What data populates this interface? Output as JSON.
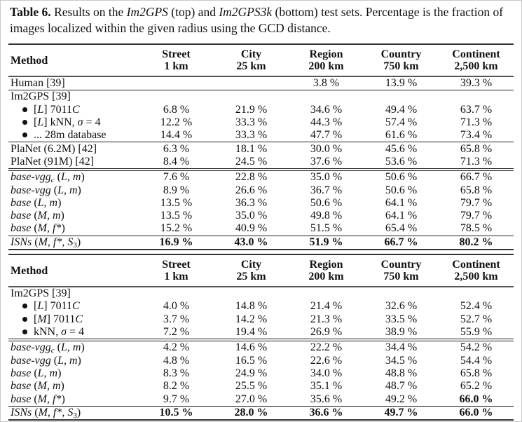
{
  "caption": [
    {
      "t": "Table 6.",
      "b": true
    },
    {
      "t": " Results on the "
    },
    {
      "t": "Im2GPS",
      "i": true
    },
    {
      "t": " (top) and "
    },
    {
      "t": "Im2GPS3k",
      "i": true
    },
    {
      "t": " (bottom) test sets. Percentage is the fraction of images localized within the given radius using the GCD distance."
    }
  ],
  "tables": [
    {
      "method_header": "Method",
      "columns": [
        {
          "name": "Street",
          "radius": "1 km"
        },
        {
          "name": "City",
          "radius": "25 km"
        },
        {
          "name": "Region",
          "radius": "200 km"
        },
        {
          "name": "Country",
          "radius": "750 km"
        },
        {
          "name": "Continent",
          "radius": "2,500 km"
        }
      ],
      "groups": [
        [
          {
            "method": [
              {
                "t": "Human [39]"
              }
            ],
            "values": [
              "",
              "",
              "3.8 %",
              "13.9 %",
              "39.3 %"
            ]
          }
        ],
        [
          {
            "method": [
              {
                "t": "Im2GPS [39]"
              }
            ],
            "values": [
              "",
              "",
              "",
              "",
              ""
            ]
          },
          {
            "bullet": true,
            "method": [
              {
                "t": "[",
                "i": false
              },
              {
                "t": "L",
                "i": true
              },
              {
                "t": "] 7011"
              },
              {
                "t": "C",
                "i": true
              }
            ],
            "values": [
              "6.8 %",
              "21.9 %",
              "34.6 %",
              "49.4 %",
              "63.7 %"
            ]
          },
          {
            "bullet": true,
            "method": [
              {
                "t": "["
              },
              {
                "t": "L",
                "i": true
              },
              {
                "t": "] kNN, "
              },
              {
                "t": "σ",
                "i": true
              },
              {
                "t": " = 4"
              }
            ],
            "values": [
              "12.2 %",
              "33.3 %",
              "44.3 %",
              "57.4 %",
              "71.3 %"
            ]
          },
          {
            "bullet": true,
            "method": [
              {
                "t": "... 28m database"
              }
            ],
            "values": [
              "14.4 %",
              "33.3 %",
              "47.7 %",
              "61.6 %",
              "73.4 %"
            ]
          }
        ],
        [
          {
            "method": [
              {
                "t": "PlaNet (6.2M) [42]"
              }
            ],
            "values": [
              "6.3 %",
              "18.1 %",
              "30.0 %",
              "45.6 %",
              "65.8 %"
            ]
          },
          {
            "method": [
              {
                "t": "PlaNet (91M) [42]"
              }
            ],
            "values": [
              "8.4 %",
              "24.5 %",
              "37.6 %",
              "53.6 %",
              "71.3 %"
            ]
          }
        ],
        [
          {
            "method": [
              {
                "t": "base-vgg",
                "i": true
              },
              {
                "t": "c",
                "i": true,
                "sub": true
              },
              {
                "t": " ("
              },
              {
                "t": "L, m",
                "i": true
              },
              {
                "t": ")"
              }
            ],
            "values": [
              "7.6 %",
              "22.8 %",
              "35.0 %",
              "50.6 %",
              "66.7 %"
            ]
          },
          {
            "method": [
              {
                "t": "base-vgg",
                "i": true
              },
              {
                "t": " ("
              },
              {
                "t": "L, m",
                "i": true
              },
              {
                "t": ")"
              }
            ],
            "values": [
              "8.9 %",
              "26.6 %",
              "36.7 %",
              "50.6 %",
              "65.8 %"
            ]
          },
          {
            "method": [
              {
                "t": "base",
                "i": true
              },
              {
                "t": " ("
              },
              {
                "t": "L, m",
                "i": true
              },
              {
                "t": ")"
              }
            ],
            "values": [
              "13.5 %",
              "36.3 %",
              "50.6 %",
              "64.1 %",
              "79.7 %"
            ]
          },
          {
            "method": [
              {
                "t": "base",
                "i": true
              },
              {
                "t": " ("
              },
              {
                "t": "M, m",
                "i": true
              },
              {
                "t": ")"
              }
            ],
            "values": [
              "13.5 %",
              "35.0 %",
              "49.8 %",
              "64.1 %",
              "79.7 %"
            ]
          },
          {
            "method": [
              {
                "t": "base",
                "i": true
              },
              {
                "t": " ("
              },
              {
                "t": "M, f*",
                "i": true
              },
              {
                "t": ")"
              }
            ],
            "values": [
              "15.2 %",
              "40.9 %",
              "51.5 %",
              "65.4 %",
              "78.5 %"
            ]
          }
        ],
        [
          {
            "method": [
              {
                "t": "ISNs",
                "i": true
              },
              {
                "t": " ("
              },
              {
                "t": "M, f*, S",
                "i": true
              },
              {
                "t": "3",
                "sub": true
              },
              {
                "t": ")"
              }
            ],
            "values": [
              "16.9 %",
              "43.0 %",
              "51.9 %",
              "66.7 %",
              "80.2 %"
            ],
            "bold": [
              0,
              1,
              2,
              3,
              4
            ]
          }
        ]
      ]
    },
    {
      "method_header": "Method",
      "columns": [
        {
          "name": "Street",
          "radius": "1 km"
        },
        {
          "name": "City",
          "radius": "25 km"
        },
        {
          "name": "Region",
          "radius": "200 km"
        },
        {
          "name": "Country",
          "radius": "750 km"
        },
        {
          "name": "Continent",
          "radius": "2,500 km"
        }
      ],
      "groups": [
        [
          {
            "method": [
              {
                "t": "Im2GPS [39]"
              }
            ],
            "values": [
              "",
              "",
              "",
              "",
              ""
            ]
          },
          {
            "bullet": true,
            "method": [
              {
                "t": "["
              },
              {
                "t": "L",
                "i": true
              },
              {
                "t": "] 7011"
              },
              {
                "t": "C",
                "i": true
              }
            ],
            "values": [
              "4.0 %",
              "14.8 %",
              "21.4 %",
              "32.6 %",
              "52.4 %"
            ]
          },
          {
            "bullet": true,
            "method": [
              {
                "t": "["
              },
              {
                "t": "M",
                "i": true
              },
              {
                "t": "] 7011"
              },
              {
                "t": "C",
                "i": true
              }
            ],
            "values": [
              "3.7 %",
              "14.2 %",
              "21.3 %",
              "33.5 %",
              "52.7 %"
            ]
          },
          {
            "bullet": true,
            "method": [
              {
                "t": "kNN, "
              },
              {
                "t": "σ",
                "i": true
              },
              {
                "t": " = 4"
              }
            ],
            "values": [
              "7.2 %",
              "19.4 %",
              "26.9 %",
              "38.9 %",
              "55.9 %"
            ]
          }
        ],
        [
          {
            "method": [
              {
                "t": "base-vgg",
                "i": true
              },
              {
                "t": "c",
                "i": true,
                "sub": true
              },
              {
                "t": " ("
              },
              {
                "t": "L, m",
                "i": true
              },
              {
                "t": ")"
              }
            ],
            "values": [
              "4.2 %",
              "14.6 %",
              "22.2 %",
              "34.4 %",
              "54.2 %"
            ]
          },
          {
            "method": [
              {
                "t": "base-vgg",
                "i": true
              },
              {
                "t": " ("
              },
              {
                "t": "L, m",
                "i": true
              },
              {
                "t": ")"
              }
            ],
            "values": [
              "4.8 %",
              "16.5 %",
              "22.6 %",
              "34.5 %",
              "54.4 %"
            ]
          },
          {
            "method": [
              {
                "t": "base",
                "i": true
              },
              {
                "t": " ("
              },
              {
                "t": "L, m",
                "i": true
              },
              {
                "t": ")"
              }
            ],
            "values": [
              "8.3 %",
              "24.9 %",
              "34.0 %",
              "48.8 %",
              "65.8 %"
            ]
          },
          {
            "method": [
              {
                "t": "base",
                "i": true
              },
              {
                "t": " ("
              },
              {
                "t": "M, m",
                "i": true
              },
              {
                "t": ")"
              }
            ],
            "values": [
              "8.2 %",
              "25.5 %",
              "35.1 %",
              "48.7 %",
              "65.2 %"
            ]
          },
          {
            "method": [
              {
                "t": "base",
                "i": true
              },
              {
                "t": " ("
              },
              {
                "t": "M, f*",
                "i": true
              },
              {
                "t": ")"
              }
            ],
            "values": [
              "9.7 %",
              "27.0 %",
              "35.6 %",
              "49.2 %",
              "66.0 %"
            ],
            "bold": [
              4
            ]
          }
        ],
        [
          {
            "method": [
              {
                "t": "ISNs",
                "i": true
              },
              {
                "t": " ("
              },
              {
                "t": "M, f*, S",
                "i": true
              },
              {
                "t": "3",
                "sub": true
              },
              {
                "t": ")"
              }
            ],
            "values": [
              "10.5 %",
              "28.0 %",
              "36.6 %",
              "49.7 %",
              "66.0 %"
            ],
            "bold": [
              0,
              1,
              2,
              3,
              4
            ]
          }
        ]
      ]
    }
  ]
}
